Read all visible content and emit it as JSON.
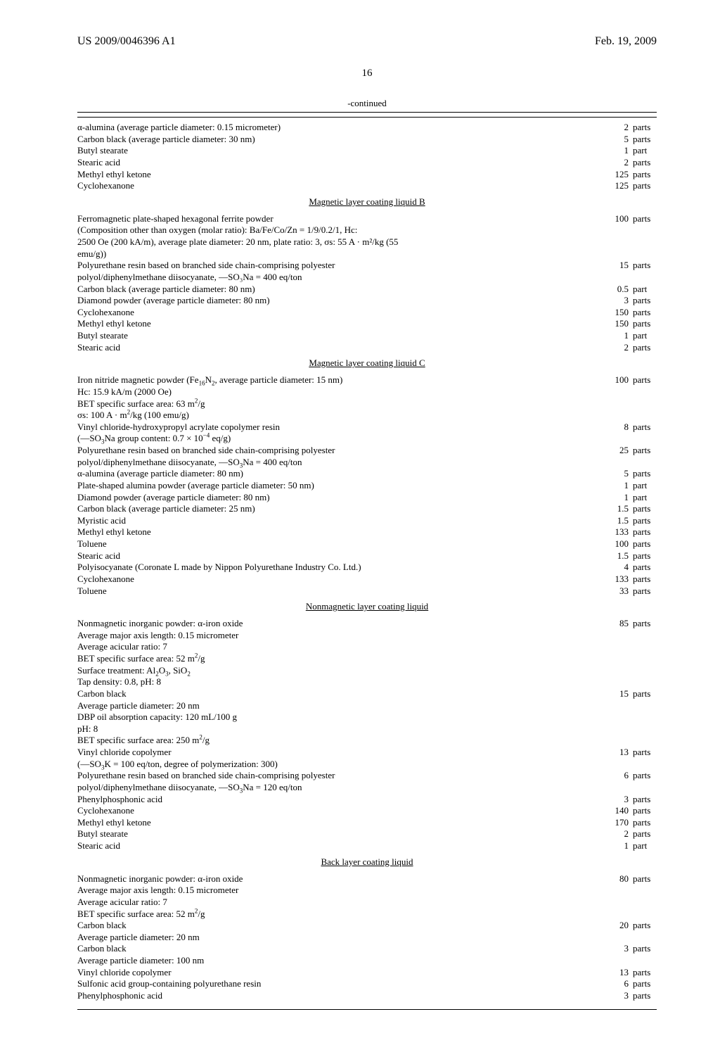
{
  "header": {
    "docNumber": "US 2009/0046396 A1",
    "date": "Feb. 19, 2009"
  },
  "pageNumber": "16",
  "continuedLabel": "-continued",
  "sections": [
    {
      "rows": [
        {
          "desc": "α-alumina (average particle diameter: 0.15 micrometer)",
          "num": "2",
          "unit": "parts"
        },
        {
          "desc": "Carbon black (average particle diameter: 30 nm)",
          "num": "5",
          "unit": "parts"
        },
        {
          "desc": "Butyl stearate",
          "num": "1",
          "unit": "part"
        },
        {
          "desc": "Stearic acid",
          "num": "2",
          "unit": "parts"
        },
        {
          "desc": "Methyl ethyl ketone",
          "num": "125",
          "unit": "parts"
        },
        {
          "desc": "Cyclohexanone",
          "num": "125",
          "unit": "parts"
        }
      ]
    },
    {
      "title": "Magnetic layer coating liquid B",
      "rows": [
        {
          "desc": "Ferromagnetic plate-shaped hexagonal ferrite powder",
          "num": "100",
          "unit": "parts"
        },
        {
          "desc": "(Composition other than oxygen (molar ratio): Ba/Fe/Co/Zn = 1/9/0.2/1, Hc:"
        },
        {
          "desc": "2500 Oe (200 kA/m), average plate diameter: 20 nm, plate ratio: 3, σs: 55 A · m²/kg (55"
        },
        {
          "desc": "emu/g))"
        },
        {
          "desc": "Polyurethane resin based on branched side chain-comprising polyester",
          "num": "15",
          "unit": "parts"
        },
        {
          "desc": "polyol/diphenylmethane diisocyanate, —SO₃Na = 400 eq/ton"
        },
        {
          "desc": "Carbon black (average particle diameter: 80 nm)",
          "num": "0.5",
          "unit": "part"
        },
        {
          "desc": "Diamond powder (average particle diameter: 80 nm)",
          "num": "3",
          "unit": "parts"
        },
        {
          "desc": "Cyclohexanone",
          "num": "150",
          "unit": "parts"
        },
        {
          "desc": "Methyl ethyl ketone",
          "num": "150",
          "unit": "parts"
        },
        {
          "desc": "Butyl stearate",
          "num": "1",
          "unit": "part"
        },
        {
          "desc": "Stearic acid",
          "num": "2",
          "unit": "parts"
        }
      ]
    },
    {
      "title": "Magnetic layer coating liquid C",
      "rows": [
        {
          "descHtml": "Iron nitride magnetic powder (Fe<sub>16</sub>N<sub>2</sub>, average particle diameter: 15 nm)",
          "num": "100",
          "unit": "parts"
        },
        {
          "desc": "Hc: 15.9 kA/m (2000 Oe)"
        },
        {
          "descHtml": "BET specific surface area: 63 m<sup>2</sup>/g"
        },
        {
          "descHtml": "σs: 100 A · m<sup>2</sup>/kg (100 emu/g)"
        },
        {
          "desc": "Vinyl chloride-hydroxypropyl acrylate copolymer resin",
          "num": "8",
          "unit": "parts"
        },
        {
          "descHtml": "(—SO<sub>3</sub>Na group content: 0.7 × 10<sup>−4</sup> eq/g)"
        },
        {
          "desc": "Polyurethane resin based on branched side chain-comprising polyester",
          "num": "25",
          "unit": "parts"
        },
        {
          "descHtml": "polyol/diphenylmethane diisocyanate, —SO<sub>3</sub>Na = 400 eq/ton"
        },
        {
          "desc": "α-alumina (average particle diameter: 80 nm)",
          "num": "5",
          "unit": "parts"
        },
        {
          "desc": "Plate-shaped alumina powder (average particle diameter: 50 nm)",
          "num": "1",
          "unit": "part"
        },
        {
          "desc": "Diamond powder (average particle diameter: 80 nm)",
          "num": "1",
          "unit": "part"
        },
        {
          "desc": "Carbon black (average particle diameter: 25 nm)",
          "num": "1.5",
          "unit": "parts"
        },
        {
          "desc": "Myristic acid",
          "num": "1.5",
          "unit": "parts"
        },
        {
          "desc": "Methyl ethyl ketone",
          "num": "133",
          "unit": "parts"
        },
        {
          "desc": "Toluene",
          "num": "100",
          "unit": "parts"
        },
        {
          "desc": "Stearic acid",
          "num": "1.5",
          "unit": "parts"
        },
        {
          "desc": "Polyisocyanate (Coronate L made by Nippon Polyurethane Industry Co. Ltd.)",
          "num": "4",
          "unit": "parts"
        },
        {
          "desc": "Cyclohexanone",
          "num": "133",
          "unit": "parts"
        },
        {
          "desc": "Toluene",
          "num": "33",
          "unit": "parts"
        }
      ]
    },
    {
      "title": "Nonmagnetic layer coating liquid",
      "rows": [
        {
          "desc": "Nonmagnetic inorganic powder: α-iron oxide",
          "num": "85",
          "unit": "parts"
        },
        {
          "desc": "Average major axis length: 0.15 micrometer"
        },
        {
          "desc": "Average acicular ratio: 7"
        },
        {
          "descHtml": "BET specific surface area: 52 m<sup>2</sup>/g"
        },
        {
          "descHtml": "Surface treatment: Al<sub>2</sub>O<sub>3</sub>, SiO<sub>2</sub>"
        },
        {
          "desc": "Tap density: 0.8, pH: 8"
        },
        {
          "desc": "Carbon black",
          "num": "15",
          "unit": "parts"
        },
        {
          "desc": "Average particle diameter: 20 nm"
        },
        {
          "desc": "DBP oil absorption capacity: 120 mL/100 g"
        },
        {
          "desc": "pH: 8"
        },
        {
          "descHtml": "BET specific surface area: 250 m<sup>2</sup>/g"
        },
        {
          "desc": "Vinyl chloride copolymer",
          "num": "13",
          "unit": "parts"
        },
        {
          "descHtml": "(—SO<sub>3</sub>K = 100 eq/ton, degree of polymerization: 300)"
        },
        {
          "desc": "Polyurethane resin based on branched side chain-comprising polyester",
          "num": "6",
          "unit": "parts"
        },
        {
          "descHtml": "polyol/diphenylmethane diisocyanate, —SO<sub>3</sub>Na = 120 eq/ton"
        },
        {
          "desc": "Phenylphosphonic acid",
          "num": "3",
          "unit": "parts"
        },
        {
          "desc": "Cyclohexanone",
          "num": "140",
          "unit": "parts"
        },
        {
          "desc": "Methyl ethyl ketone",
          "num": "170",
          "unit": "parts"
        },
        {
          "desc": "Butyl stearate",
          "num": "2",
          "unit": "parts"
        },
        {
          "desc": "Stearic acid",
          "num": "1",
          "unit": "part"
        }
      ]
    },
    {
      "title": "Back layer coating liquid",
      "rows": [
        {
          "desc": "Nonmagnetic inorganic powder: α-iron oxide",
          "num": "80",
          "unit": "parts"
        },
        {
          "desc": "Average major axis length: 0.15 micrometer"
        },
        {
          "desc": "Average acicular ratio: 7"
        },
        {
          "descHtml": "BET specific surface area: 52 m<sup>2</sup>/g"
        },
        {
          "desc": "Carbon black",
          "num": "20",
          "unit": "parts"
        },
        {
          "desc": "Average particle diameter: 20 nm"
        },
        {
          "desc": "Carbon black",
          "num": "3",
          "unit": "parts"
        },
        {
          "desc": "Average particle diameter: 100 nm"
        },
        {
          "desc": "Vinyl chloride copolymer",
          "num": "13",
          "unit": "parts"
        },
        {
          "desc": "Sulfonic acid group-containing polyurethane resin",
          "num": "6",
          "unit": "parts"
        },
        {
          "desc": "Phenylphosphonic acid",
          "num": "3",
          "unit": "parts"
        }
      ]
    }
  ]
}
